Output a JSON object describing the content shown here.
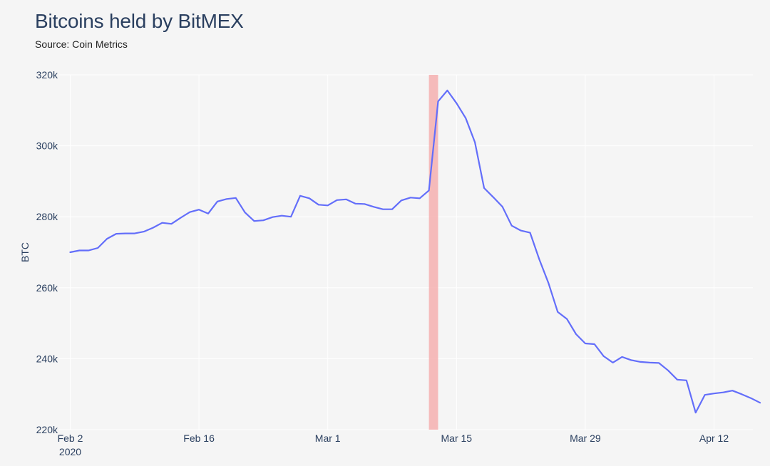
{
  "title": "Bitcoins held by BitMEX",
  "subtitle": "Source: Coin Metrics",
  "colors": {
    "background": "#f5f5f5",
    "line": "#636efa",
    "highlight": "#f4a6a6",
    "grid": "#ffffff",
    "text": "#2a3f5f"
  },
  "chart_data": {
    "type": "line",
    "title": "Bitcoins held by BitMEX",
    "subtitle": "Source: Coin Metrics",
    "ylabel": "BTC",
    "xlabel": "",
    "x_start": "2020-02-02",
    "x_range": [
      "2020-02-02",
      "2020-04-16"
    ],
    "ylim": [
      220000,
      320000
    ],
    "y_ticks": [
      220000,
      240000,
      260000,
      280000,
      300000,
      320000
    ],
    "y_tick_labels": [
      "220k",
      "240k",
      "260k",
      "280k",
      "300k",
      "320k"
    ],
    "x_ticks": [
      {
        "date": "2020-02-02",
        "label": "Feb 2",
        "sublabel": "2020"
      },
      {
        "date": "2020-02-16",
        "label": "Feb 16",
        "sublabel": ""
      },
      {
        "date": "2020-03-01",
        "label": "Mar 1",
        "sublabel": ""
      },
      {
        "date": "2020-03-15",
        "label": "Mar 15",
        "sublabel": ""
      },
      {
        "date": "2020-03-29",
        "label": "Mar 29",
        "sublabel": ""
      },
      {
        "date": "2020-04-12",
        "label": "Apr 12",
        "sublabel": ""
      }
    ],
    "highlight_band": [
      "2020-03-12",
      "2020-03-13"
    ],
    "grid": true,
    "series": [
      {
        "name": "",
        "values": [
          270000,
          270500,
          270500,
          271200,
          273800,
          275200,
          275300,
          275300,
          275800,
          276900,
          278300,
          278000,
          279700,
          281300,
          282000,
          280900,
          284300,
          285000,
          285300,
          281200,
          278800,
          279000,
          279900,
          280300,
          280000,
          285900,
          285200,
          283400,
          283200,
          284700,
          284900,
          283700,
          283600,
          282800,
          282100,
          282100,
          284600,
          285400,
          285200,
          287400,
          312500,
          315600,
          312000,
          307800,
          301000,
          288100,
          285500,
          282800,
          277500,
          276100,
          275500,
          268000,
          261300,
          253200,
          251200,
          246900,
          244300,
          244100,
          240700,
          238900,
          240500,
          239600,
          239100,
          238900,
          238800,
          236700,
          234100,
          233900,
          224800,
          229800,
          230200,
          230500,
          231000,
          230000,
          228900,
          227600
        ]
      }
    ]
  }
}
